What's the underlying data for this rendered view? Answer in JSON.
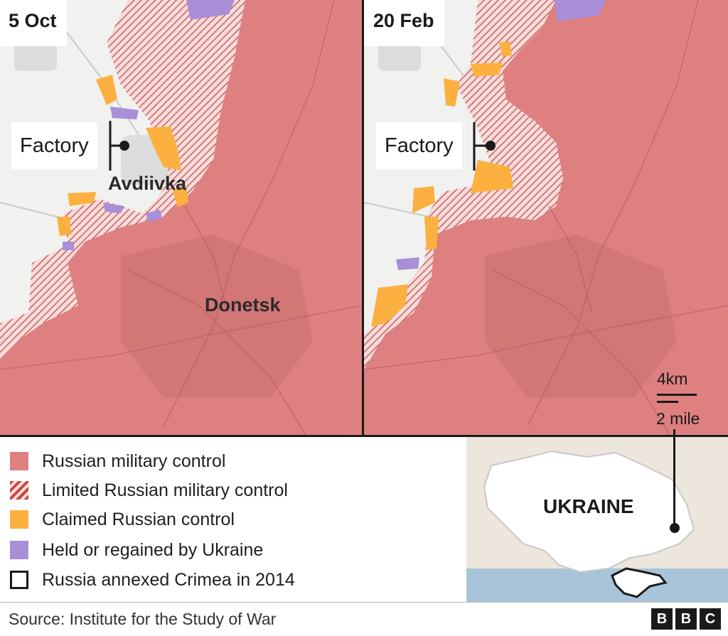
{
  "panels": {
    "left": {
      "date": "5 Oct",
      "factory_label": "Factory",
      "city_1": "Avdiivka",
      "city_2": "Donetsk"
    },
    "right": {
      "date": "20 Feb",
      "factory_label": "Factory"
    }
  },
  "scale": {
    "km": "4km",
    "mile": "2 mile"
  },
  "legend": [
    {
      "label": "Russian military control",
      "swatch": "solid",
      "color": "#de8080"
    },
    {
      "label": "Limited Russian military control",
      "swatch": "hatched",
      "color": "#c9483f"
    },
    {
      "label": "Claimed Russian control",
      "swatch": "solid",
      "color": "#fbb040"
    },
    {
      "label": "Held or regained by Ukraine",
      "swatch": "solid",
      "color": "#a98ed8"
    },
    {
      "label": "Russia annexed Crimea in 2014",
      "swatch": "outline",
      "color": "#1a1a1a"
    }
  ],
  "inset": {
    "country_label": "UKRAINE"
  },
  "footer": {
    "source": "Source:  Institute for the Study of War",
    "logo": [
      "B",
      "B",
      "C"
    ]
  },
  "colors": {
    "russian_control": "#de8080",
    "limited_control_hatch": "#c9483f",
    "claimed": "#fbb040",
    "ukraine": "#a98ed8",
    "background": "#f1f1ef",
    "sea": "#a8c4d8"
  }
}
